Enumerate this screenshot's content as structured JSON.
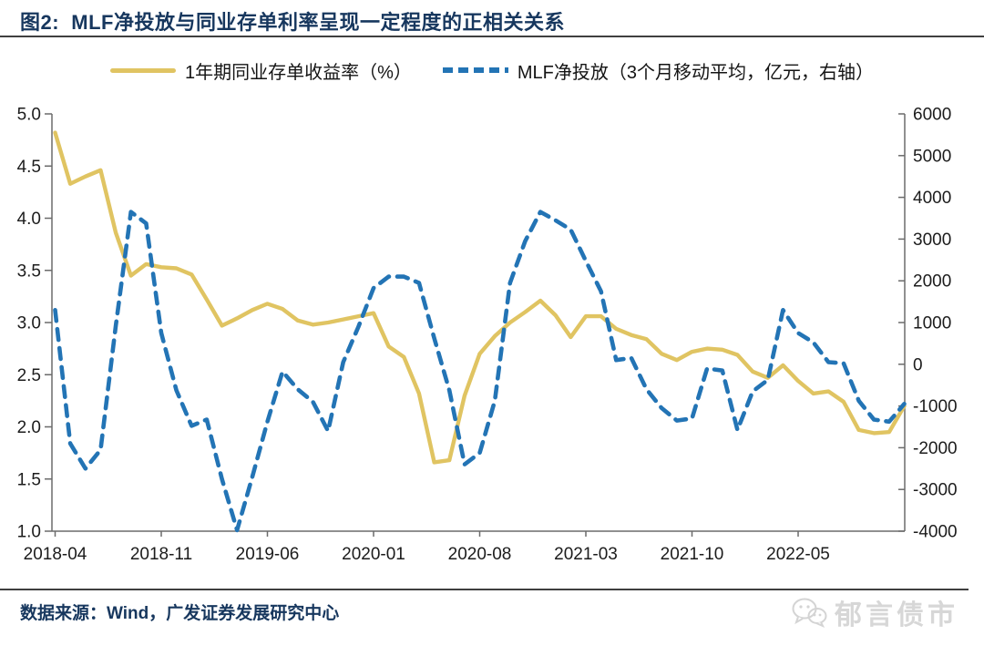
{
  "header": {
    "title": "图2:  MLF净投放与同业存单利率呈现一定程度的正相关关系"
  },
  "legend": {
    "items": [
      {
        "label": "1年期同业存单收益率（%）",
        "color": "#e0c462",
        "style": "solid"
      },
      {
        "label": "MLF净投放（3个月移动平均，亿元，右轴）",
        "color": "#2374b5",
        "style": "dashed"
      }
    ]
  },
  "chart_data": {
    "type": "line",
    "title": "MLF净投放与同业存单利率呈现一定程度的正相关关系",
    "grid": false,
    "legend_position": "top",
    "x": [
      "2018-04",
      "2018-05",
      "2018-06",
      "2018-07",
      "2018-08",
      "2018-09",
      "2018-10",
      "2018-11",
      "2018-12",
      "2019-01",
      "2019-02",
      "2019-03",
      "2019-04",
      "2019-05",
      "2019-06",
      "2019-07",
      "2019-08",
      "2019-09",
      "2019-10",
      "2019-11",
      "2019-12",
      "2020-01",
      "2020-02",
      "2020-03",
      "2020-04",
      "2020-05",
      "2020-06",
      "2020-07",
      "2020-08",
      "2020-09",
      "2020-10",
      "2020-11",
      "2020-12",
      "2021-01",
      "2021-02",
      "2021-03",
      "2021-04",
      "2021-05",
      "2021-06",
      "2021-07",
      "2021-08",
      "2021-09",
      "2021-10",
      "2021-11",
      "2021-12",
      "2022-01",
      "2022-02",
      "2022-03",
      "2022-04",
      "2022-05",
      "2022-06",
      "2022-07",
      "2022-08",
      "2022-09",
      "2022-10",
      "2022-11",
      "2022-12"
    ],
    "x_tick_labels": [
      "2018-04",
      "2018-11",
      "2019-06",
      "2020-01",
      "2020-08",
      "2021-03",
      "2021-10",
      "2022-05"
    ],
    "left_axis": {
      "min": 1.0,
      "max": 5.0,
      "tick_labels": [
        "5.0",
        "4.5",
        "4.0",
        "3.5",
        "3.0",
        "2.5",
        "2.0",
        "1.5",
        "1.0"
      ]
    },
    "right_axis": {
      "min": -4000,
      "max": 6000,
      "tick_labels": [
        "6000",
        "5000",
        "4000",
        "3000",
        "2000",
        "1000",
        "0",
        "-1000",
        "-2000",
        "-3000",
        "-4000"
      ]
    },
    "series": [
      {
        "name": "1年期同业存单收益率（%）",
        "axis": "left",
        "color": "#e0c462",
        "style": "solid",
        "values": [
          4.82,
          4.33,
          4.4,
          4.46,
          3.86,
          3.45,
          3.56,
          3.53,
          3.52,
          3.46,
          3.22,
          2.97,
          3.04,
          3.12,
          3.18,
          3.13,
          3.02,
          2.98,
          3.0,
          3.03,
          3.06,
          3.09,
          2.77,
          2.67,
          2.32,
          1.66,
          1.68,
          2.3,
          2.7,
          2.87,
          3.0,
          3.1,
          3.21,
          3.07,
          2.86,
          3.06,
          3.06,
          2.94,
          2.88,
          2.84,
          2.7,
          2.64,
          2.72,
          2.75,
          2.74,
          2.69,
          2.53,
          2.47,
          2.59,
          2.44,
          2.32,
          2.34,
          2.24,
          1.97,
          1.94,
          1.95,
          2.2
        ]
      },
      {
        "name": "MLF净投放（3个月移动平均，亿元，右轴）",
        "axis": "right",
        "color": "#2374b5",
        "style": "dashed",
        "values": [
          1300,
          -1900,
          -2500,
          -2050,
          925,
          3650,
          3375,
          750,
          -625,
          -1475,
          -1325,
          -2750,
          -3975,
          -2700,
          -1375,
          -175,
          -600,
          -900,
          -1600,
          50,
          900,
          1825,
          2100,
          2100,
          1950,
          625,
          -625,
          -2400,
          -2125,
          -875,
          1950,
          2950,
          3650,
          3450,
          3225,
          2475,
          1750,
          100,
          150,
          -600,
          -1050,
          -1350,
          -1300,
          -100,
          -150,
          -1575,
          -650,
          -375,
          1300,
          750,
          525,
          50,
          25,
          -875,
          -1325,
          -1375,
          -950
        ]
      }
    ]
  },
  "footer": {
    "source": "数据来源：Wind，广发证券发展研究中心",
    "watermark": "郁言债市"
  }
}
